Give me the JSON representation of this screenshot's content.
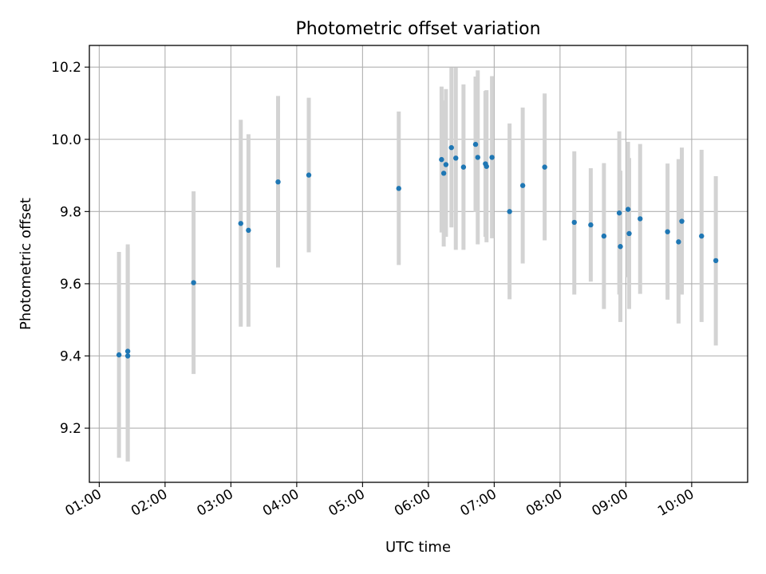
{
  "chart_data": {
    "type": "scatter",
    "title": "Photometric offset variation",
    "xlabel": "UTC time",
    "ylabel": "Photometric offset",
    "x_tick_labels": [
      "01:00",
      "02:00",
      "03:00",
      "04:00",
      "05:00",
      "06:00",
      "07:00",
      "08:00",
      "09:00",
      "10:00"
    ],
    "x_ticks": [
      "01:00",
      "02:00",
      "03:00",
      "04:00",
      "05:00",
      "06:00",
      "07:00",
      "08:00",
      "09:00",
      "10:00"
    ],
    "x_range": [
      "00:51",
      "10:51"
    ],
    "y_ticks": [
      9.2,
      9.4,
      9.6,
      9.8,
      10.0,
      10.2
    ],
    "y_tick_labels": [
      "9.2",
      "9.4",
      "9.6",
      "9.8",
      "10.0",
      "10.2"
    ],
    "ylim": [
      9.05,
      10.26
    ],
    "grid": true,
    "colors": {
      "point": "#1f77b4",
      "errorbar": "#d3d3d3",
      "grid": "#b0b0b0"
    },
    "points": [
      {
        "t": "01:18",
        "y": 9.403,
        "lo": 9.118,
        "hi": 9.688
      },
      {
        "t": "01:26",
        "y": 9.413,
        "lo": 9.108,
        "hi": 9.709
      },
      {
        "t": "01:26",
        "y": 9.4,
        "lo": 9.108,
        "hi": 9.7
      },
      {
        "t": "02:26",
        "y": 9.603,
        "lo": 9.35,
        "hi": 9.856
      },
      {
        "t": "03:09",
        "y": 9.767,
        "lo": 9.481,
        "hi": 10.054
      },
      {
        "t": "03:16",
        "y": 9.748,
        "lo": 9.481,
        "hi": 10.014
      },
      {
        "t": "03:43",
        "y": 9.882,
        "lo": 9.645,
        "hi": 10.12
      },
      {
        "t": "04:11",
        "y": 9.901,
        "lo": 9.687,
        "hi": 10.115
      },
      {
        "t": "05:33",
        "y": 9.864,
        "lo": 9.652,
        "hi": 10.077
      },
      {
        "t": "06:12",
        "y": 9.944,
        "lo": 9.742,
        "hi": 10.146
      },
      {
        "t": "06:14",
        "y": 9.906,
        "lo": 9.703,
        "hi": 10.108
      },
      {
        "t": "06:16",
        "y": 9.93,
        "lo": 9.73,
        "hi": 10.139
      },
      {
        "t": "06:21",
        "y": 9.977,
        "lo": 9.756,
        "hi": 10.199
      },
      {
        "t": "06:25",
        "y": 9.948,
        "lo": 9.694,
        "hi": 10.199
      },
      {
        "t": "06:32",
        "y": 9.923,
        "lo": 9.694,
        "hi": 10.152
      },
      {
        "t": "06:43",
        "y": 9.986,
        "lo": 9.799,
        "hi": 10.174
      },
      {
        "t": "06:45",
        "y": 9.95,
        "lo": 9.709,
        "hi": 10.191
      },
      {
        "t": "06:52",
        "y": 9.932,
        "lo": 9.73,
        "hi": 10.134
      },
      {
        "t": "06:53",
        "y": 9.925,
        "lo": 9.715,
        "hi": 10.136
      },
      {
        "t": "06:58",
        "y": 9.95,
        "lo": 9.726,
        "hi": 10.175
      },
      {
        "t": "07:14",
        "y": 9.8,
        "lo": 9.557,
        "hi": 10.044
      },
      {
        "t": "07:26",
        "y": 9.872,
        "lo": 9.656,
        "hi": 10.088
      },
      {
        "t": "07:46",
        "y": 9.923,
        "lo": 9.72,
        "hi": 10.127
      },
      {
        "t": "08:13",
        "y": 9.77,
        "lo": 9.57,
        "hi": 9.967
      },
      {
        "t": "08:28",
        "y": 9.763,
        "lo": 9.606,
        "hi": 9.92
      },
      {
        "t": "08:40",
        "y": 9.732,
        "lo": 9.53,
        "hi": 9.934
      },
      {
        "t": "08:54",
        "y": 9.796,
        "lo": 9.57,
        "hi": 10.022
      },
      {
        "t": "08:55",
        "y": 9.703,
        "lo": 9.494,
        "hi": 9.913
      },
      {
        "t": "09:02",
        "y": 9.806,
        "lo": 9.618,
        "hi": 9.993
      },
      {
        "t": "09:03",
        "y": 9.739,
        "lo": 9.53,
        "hi": 9.948
      },
      {
        "t": "09:13",
        "y": 9.78,
        "lo": 9.572,
        "hi": 9.987
      },
      {
        "t": "09:38",
        "y": 9.744,
        "lo": 9.556,
        "hi": 9.933
      },
      {
        "t": "09:48",
        "y": 9.716,
        "lo": 9.49,
        "hi": 9.945
      },
      {
        "t": "09:51",
        "y": 9.773,
        "lo": 9.57,
        "hi": 9.977
      },
      {
        "t": "10:09",
        "y": 9.732,
        "lo": 9.494,
        "hi": 9.971
      },
      {
        "t": "10:22",
        "y": 9.664,
        "lo": 9.429,
        "hi": 9.898
      }
    ]
  }
}
